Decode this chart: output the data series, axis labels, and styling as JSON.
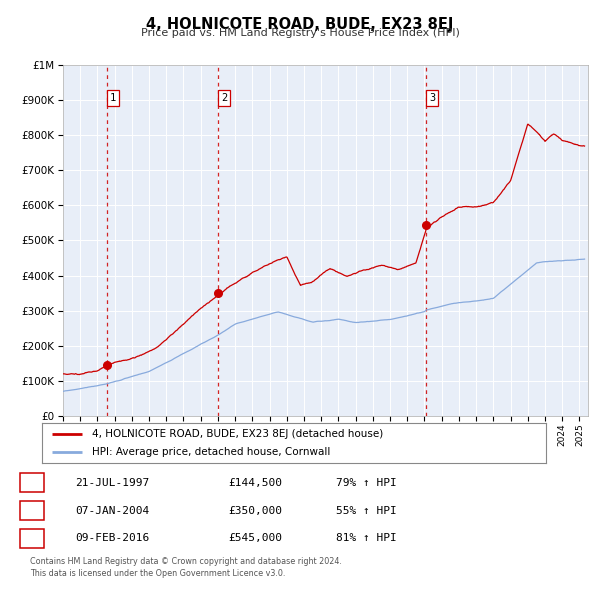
{
  "title": "4, HOLNICOTE ROAD, BUDE, EX23 8EJ",
  "subtitle": "Price paid vs. HM Land Registry's House Price Index (HPI)",
  "legend_label_red": "4, HOLNICOTE ROAD, BUDE, EX23 8EJ (detached house)",
  "legend_label_blue": "HPI: Average price, detached house, Cornwall",
  "transactions": [
    {
      "num": 1,
      "date": "21-JUL-1997",
      "price": 144500,
      "hpi_pct": "79%",
      "year": 1997.55
    },
    {
      "num": 2,
      "date": "07-JAN-2004",
      "price": 350000,
      "hpi_pct": "55%",
      "year": 2004.03
    },
    {
      "num": 3,
      "date": "09-FEB-2016",
      "price": 545000,
      "hpi_pct": "81%",
      "year": 2016.11
    }
  ],
  "footer_line1": "Contains HM Land Registry data © Crown copyright and database right 2024.",
  "footer_line2": "This data is licensed under the Open Government Licence v3.0.",
  "bg_color": "#e8eef8",
  "red_color": "#cc0000",
  "blue_color": "#88aadd",
  "vline_color": "#cc0000",
  "ylim": [
    0,
    1000000
  ],
  "xlim_start": 1995.0,
  "xlim_end": 2025.5
}
